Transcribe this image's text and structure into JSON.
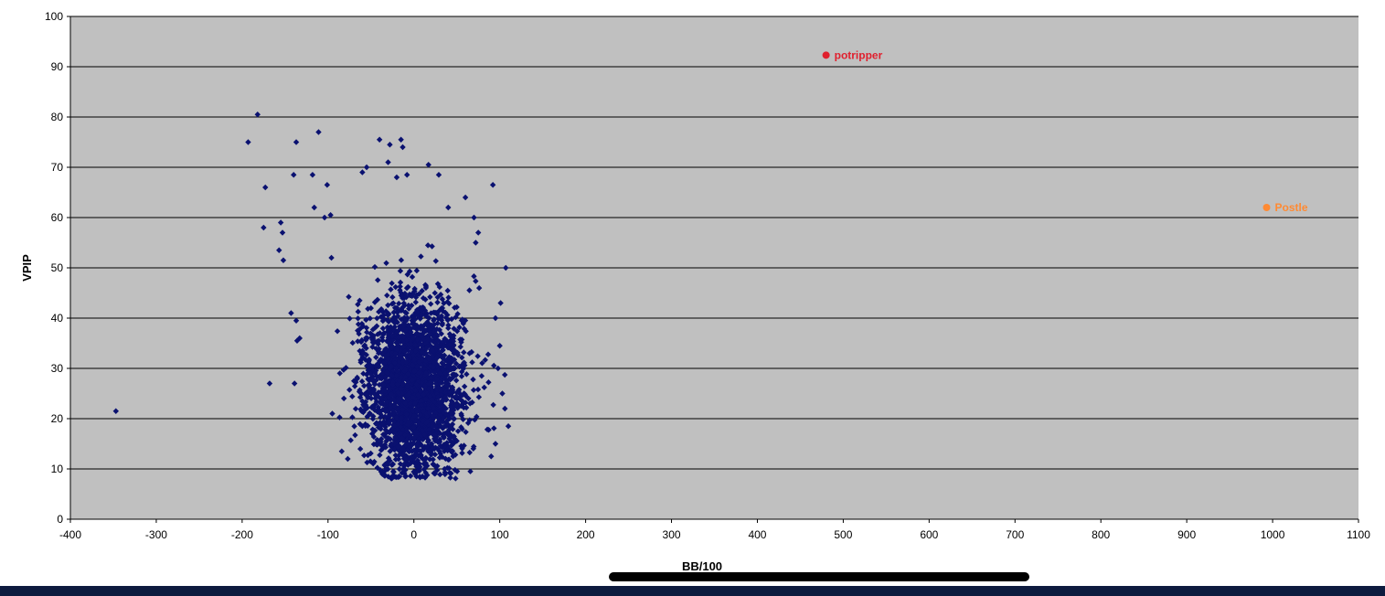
{
  "chart_data": {
    "type": "scatter",
    "xlabel": "BB/100",
    "ylabel": "VPIP",
    "xlim": [
      -400,
      1100
    ],
    "ylim": [
      0,
      100
    ],
    "x_ticks": [
      -400,
      -300,
      -200,
      -100,
      0,
      100,
      200,
      300,
      400,
      500,
      600,
      700,
      800,
      900,
      1000,
      1100
    ],
    "y_ticks": [
      0,
      10,
      20,
      30,
      40,
      50,
      60,
      70,
      80,
      90,
      100
    ],
    "grid": "horizontal",
    "background": "#c0c0c0",
    "series": [
      {
        "marker": "diamond",
        "color": "#0a1170",
        "cluster": {
          "count": 2600,
          "center_x": 0,
          "spread_x": 28,
          "center_y": 26,
          "spread_y": 9,
          "x_range": [
            -100,
            110
          ],
          "y_range": [
            8,
            76
          ]
        },
        "points": [
          [
            -347,
            21.5
          ],
          [
            -182,
            80.5
          ],
          [
            -193,
            75
          ],
          [
            -173,
            66
          ],
          [
            -175,
            58
          ],
          [
            -168,
            27
          ],
          [
            -137,
            75
          ],
          [
            -111,
            77
          ],
          [
            -140,
            68.5
          ],
          [
            -155,
            59
          ],
          [
            -153,
            57
          ],
          [
            -157,
            53.5
          ],
          [
            -152,
            51.5
          ],
          [
            -143,
            41
          ],
          [
            -137,
            39.5
          ],
          [
            -136,
            35.5
          ],
          [
            -133,
            36
          ],
          [
            -139,
            27
          ],
          [
            -118,
            68.5
          ],
          [
            -116,
            62
          ],
          [
            -101,
            66.5
          ],
          [
            -96,
            52
          ],
          [
            -104,
            60
          ],
          [
            -97,
            60.5
          ],
          [
            -40,
            75.5
          ],
          [
            -28,
            74.5
          ],
          [
            -15,
            75.5
          ],
          [
            -13,
            74
          ],
          [
            17,
            70.5
          ],
          [
            29,
            68.5
          ],
          [
            92,
            66.5
          ],
          [
            107,
            50
          ],
          [
            110,
            18.5
          ],
          [
            106,
            22
          ],
          [
            103,
            25
          ],
          [
            98,
            30
          ],
          [
            100,
            34.5
          ],
          [
            95,
            40
          ],
          [
            101,
            43
          ],
          [
            90,
            12.5
          ],
          [
            95,
            15
          ],
          [
            -95,
            21
          ],
          [
            -77,
            12
          ],
          [
            -84,
            13.5
          ],
          [
            -10,
            8.5
          ],
          [
            3,
            8.5
          ],
          [
            10,
            8.5
          ],
          [
            60,
            64
          ],
          [
            70,
            60
          ],
          [
            75,
            57
          ],
          [
            72,
            55
          ],
          [
            -60,
            69
          ],
          [
            -55,
            70
          ],
          [
            -30,
            71
          ],
          [
            -20,
            68
          ],
          [
            -8,
            68.5
          ],
          [
            40,
            62
          ]
        ]
      },
      {
        "name": "potripper",
        "marker": "circle",
        "color": "#e0202e",
        "points": [
          [
            480,
            92.3
          ]
        ]
      },
      {
        "name": "Postle",
        "marker": "circle",
        "color": "#ff8a33",
        "points": [
          [
            993,
            62
          ]
        ]
      }
    ]
  }
}
